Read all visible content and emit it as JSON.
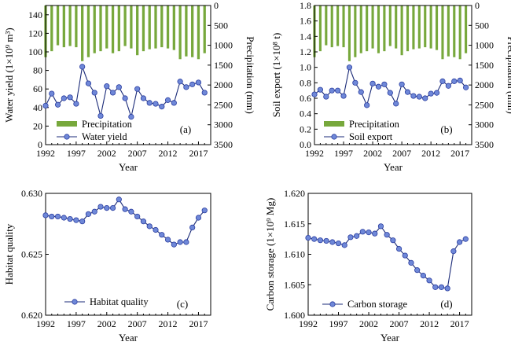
{
  "chart_data": [
    {
      "panel": "(a)",
      "type": "line",
      "xlabel": "Year",
      "ylabel": "Water yield (1×10⁹ m³)",
      "y2label": "Precipitation (mm)",
      "xlim": [
        1992,
        2019
      ],
      "xticks": [
        1992,
        1997,
        2002,
        2007,
        2012,
        2017
      ],
      "ylim": [
        0,
        150
      ],
      "yticks": [
        0,
        20,
        40,
        60,
        80,
        100,
        120,
        140
      ],
      "y2lim": [
        0,
        3500
      ],
      "y2ticks": [
        0,
        500,
        1000,
        1500,
        2000,
        2500,
        3000,
        3500
      ],
      "y2_inverted": true,
      "legend": [
        {
          "label": "Precipitation",
          "kind": "bar",
          "color": "#77a83c"
        },
        {
          "label": "Water yield",
          "kind": "line-marker",
          "color": "#2b3ea0"
        }
      ],
      "x": [
        1992,
        1993,
        1994,
        1995,
        1996,
        1997,
        1998,
        1999,
        2000,
        2001,
        2002,
        2003,
        2004,
        2005,
        2006,
        2007,
        2008,
        2009,
        2010,
        2011,
        2012,
        2013,
        2014,
        2015,
        2016,
        2017,
        2018
      ],
      "series": [
        {
          "name": "Water yield",
          "kind": "line",
          "values": [
            42,
            55,
            43,
            50,
            51,
            44,
            84,
            66,
            56,
            31,
            63,
            56,
            62,
            50,
            30,
            60,
            50,
            45,
            44,
            41,
            48,
            45,
            68,
            62,
            65,
            67,
            56
          ]
        },
        {
          "name": "Precipitation",
          "kind": "bar",
          "axis": "right",
          "values": [
            1300,
            1150,
            1000,
            1050,
            1020,
            1050,
            1400,
            1300,
            1200,
            1150,
            1080,
            1200,
            1150,
            1020,
            1080,
            1250,
            1150,
            1100,
            1080,
            1050,
            1080,
            1120,
            1350,
            1280,
            1300,
            1350,
            1200
          ]
        }
      ]
    },
    {
      "panel": "(b)",
      "type": "line",
      "xlabel": "Year",
      "ylabel": "Soil export (1×10⁸ t)",
      "y2label": "Precipitation (mm)",
      "xlim": [
        1992,
        2019
      ],
      "xticks": [
        1992,
        1997,
        2002,
        2007,
        2012,
        2017
      ],
      "ylim": [
        0,
        1.8
      ],
      "yticks": [
        0.0,
        0.2,
        0.4,
        0.6,
        0.8,
        1.0,
        1.2,
        1.4,
        1.6,
        1.8
      ],
      "y2lim": [
        0,
        3500
      ],
      "y2ticks": [
        0,
        500,
        1000,
        1500,
        2000,
        2500,
        3000,
        3500
      ],
      "y2_inverted": true,
      "legend": [
        {
          "label": "Precipitation",
          "kind": "bar",
          "color": "#77a83c"
        },
        {
          "label": "Soil export",
          "kind": "line-marker",
          "color": "#2b3ea0"
        }
      ],
      "x": [
        1992,
        1993,
        1994,
        1995,
        1996,
        1997,
        1998,
        1999,
        2000,
        2001,
        2002,
        2003,
        2004,
        2005,
        2006,
        2007,
        2008,
        2009,
        2010,
        2011,
        2012,
        2013,
        2014,
        2015,
        2016,
        2017,
        2018
      ],
      "series": [
        {
          "name": "Soil export",
          "kind": "line",
          "values": [
            0.65,
            0.71,
            0.62,
            0.7,
            0.7,
            0.63,
            1.0,
            0.8,
            0.68,
            0.51,
            0.79,
            0.75,
            0.78,
            0.67,
            0.53,
            0.78,
            0.68,
            0.63,
            0.62,
            0.6,
            0.66,
            0.67,
            0.82,
            0.76,
            0.82,
            0.83,
            0.74
          ]
        },
        {
          "name": "Precipitation",
          "kind": "bar",
          "axis": "right",
          "values": [
            1300,
            1150,
            1000,
            1050,
            1020,
            1050,
            1400,
            1300,
            1200,
            1150,
            1080,
            1200,
            1150,
            1020,
            1080,
            1250,
            1150,
            1100,
            1080,
            1050,
            1080,
            1120,
            1350,
            1280,
            1300,
            1350,
            1200
          ]
        }
      ]
    },
    {
      "panel": "(c)",
      "type": "line",
      "xlabel": "Year",
      "ylabel": "Habitat quality",
      "xlim": [
        1992,
        2019
      ],
      "xticks": [
        1992,
        1997,
        2002,
        2007,
        2012,
        2017
      ],
      "ylim": [
        0.62,
        0.63
      ],
      "yticks": [
        0.62,
        0.625,
        0.63
      ],
      "legend": [
        {
          "label": "Habitat quality",
          "kind": "line-marker",
          "color": "#2b3ea0"
        }
      ],
      "x": [
        1992,
        1993,
        1994,
        1995,
        1996,
        1997,
        1998,
        1999,
        2000,
        2001,
        2002,
        2003,
        2004,
        2005,
        2006,
        2007,
        2008,
        2009,
        2010,
        2011,
        2012,
        2013,
        2014,
        2015,
        2016,
        2017,
        2018
      ],
      "series": [
        {
          "name": "Habitat quality",
          "kind": "line",
          "values": [
            0.6282,
            0.6281,
            0.6281,
            0.628,
            0.6279,
            0.6278,
            0.6277,
            0.6283,
            0.6285,
            0.6289,
            0.6288,
            0.6288,
            0.6295,
            0.6287,
            0.6285,
            0.6281,
            0.6277,
            0.6273,
            0.627,
            0.6266,
            0.6262,
            0.6258,
            0.626,
            0.626,
            0.6272,
            0.628,
            0.6286
          ]
        }
      ]
    },
    {
      "panel": "(d)",
      "type": "line",
      "xlabel": "Year",
      "ylabel": "Carbon storage (1×10⁹ Mg)",
      "xlim": [
        1992,
        2019
      ],
      "xticks": [
        1992,
        1997,
        2002,
        2007,
        2012,
        2017
      ],
      "ylim": [
        1.6,
        1.62
      ],
      "yticks": [
        1.6,
        1.605,
        1.61,
        1.615,
        1.62
      ],
      "legend": [
        {
          "label": "Carbon storage",
          "kind": "line-marker",
          "color": "#2b3ea0"
        }
      ],
      "x": [
        1992,
        1993,
        1994,
        1995,
        1996,
        1997,
        1998,
        1999,
        2000,
        2001,
        2002,
        2003,
        2004,
        2005,
        2006,
        2007,
        2008,
        2009,
        2010,
        2011,
        2012,
        2013,
        2014,
        2015,
        2016,
        2017,
        2018
      ],
      "series": [
        {
          "name": "Carbon storage",
          "kind": "line",
          "values": [
            1.6127,
            1.6125,
            1.6123,
            1.6122,
            1.612,
            1.6118,
            1.6115,
            1.6128,
            1.613,
            1.6137,
            1.6136,
            1.6134,
            1.6146,
            1.6132,
            1.6123,
            1.6109,
            1.6098,
            1.6086,
            1.6074,
            1.6065,
            1.6057,
            1.6046,
            1.6046,
            1.6044,
            1.6105,
            1.612,
            1.6125
          ]
        }
      ]
    }
  ]
}
